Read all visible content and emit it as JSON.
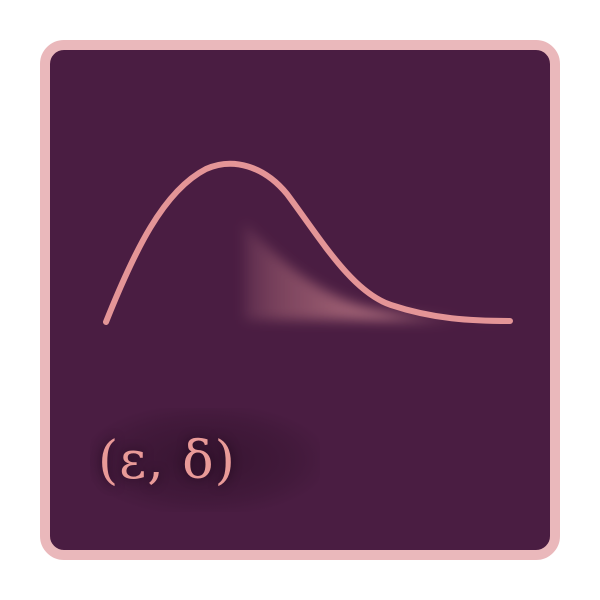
{
  "icon": {
    "name": "differential-privacy-distribution-icon",
    "formula": "(ε, δ)"
  },
  "colors": {
    "background": "#4a1d42",
    "border": "#eab8bb",
    "accent": "#e99a98",
    "shaded_tail": "#c57f8a"
  }
}
